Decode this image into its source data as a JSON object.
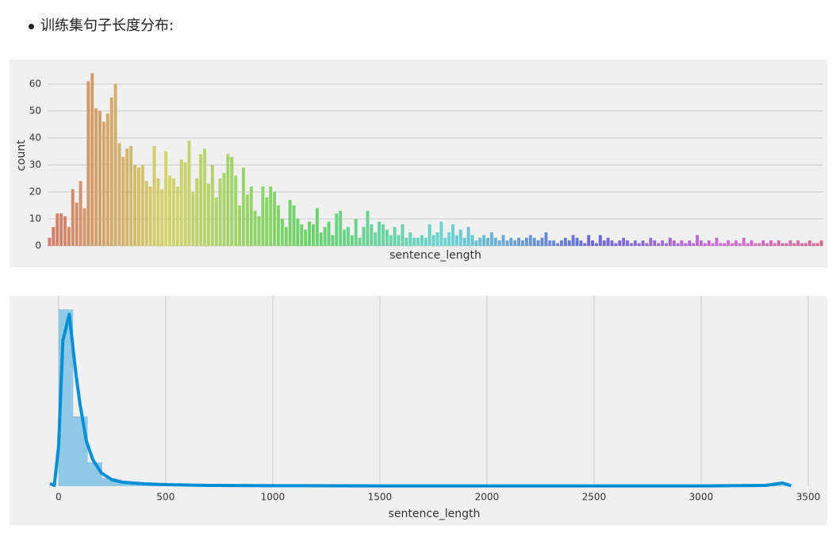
{
  "bullet": "训练集句子长度分布:",
  "chart_data": [
    {
      "type": "bar",
      "xlabel": "sentence_length",
      "ylabel": "count",
      "palette": "husl",
      "grid": "y",
      "ylim": [
        0,
        67
      ],
      "yticks": [
        0,
        10,
        20,
        30,
        40,
        50,
        60
      ],
      "values": [
        3,
        7,
        12,
        12,
        11,
        7,
        21,
        16,
        24,
        14,
        61,
        64,
        51,
        50,
        46,
        49,
        55,
        60,
        38,
        33,
        36,
        37,
        30,
        29,
        30,
        24,
        22,
        37,
        25,
        21,
        35,
        26,
        25,
        22,
        32,
        31,
        39,
        20,
        25,
        34,
        36,
        23,
        30,
        18,
        25,
        27,
        34,
        33,
        26,
        15,
        29,
        19,
        22,
        13,
        11,
        22,
        18,
        22,
        20,
        15,
        10,
        7,
        17,
        15,
        10,
        8,
        6,
        9,
        8,
        14,
        5,
        7,
        9,
        4,
        12,
        13,
        6,
        7,
        4,
        10,
        3,
        7,
        13,
        8,
        5,
        9,
        8,
        6,
        4,
        7,
        4,
        8,
        3,
        5,
        3,
        3,
        4,
        3,
        8,
        4,
        5,
        9,
        3,
        5,
        8,
        4,
        6,
        3,
        7,
        4,
        2,
        3,
        4,
        3,
        5,
        3,
        2,
        4,
        2,
        3,
        2,
        3,
        2,
        3,
        4,
        3,
        2,
        3,
        5,
        2,
        2,
        1,
        2,
        3,
        2,
        4,
        3,
        2,
        1,
        4,
        2,
        1,
        4,
        2,
        3,
        2,
        1,
        2,
        3,
        2,
        1,
        2,
        1,
        2,
        1,
        3,
        2,
        1,
        2,
        1,
        3,
        2,
        1,
        2,
        1,
        2,
        1,
        4,
        2,
        1,
        2,
        1,
        3,
        1,
        1,
        2,
        1,
        2,
        1,
        3,
        1,
        2,
        1,
        1,
        2,
        1,
        2,
        1,
        2,
        1,
        1,
        2,
        1,
        2,
        1,
        1,
        2,
        1,
        1,
        2
      ]
    },
    {
      "type": "histogram",
      "xlabel": "sentence_length",
      "color": "#008fd5",
      "grid": "x",
      "xlim": [
        -81,
        3589
      ],
      "xticks": [
        0,
        500,
        1000,
        1500,
        2000,
        2500,
        3000,
        3500
      ],
      "ylim": [
        0,
        0.0072
      ],
      "bins": [
        0,
        68,
        136,
        204,
        272,
        340,
        408,
        476,
        544,
        612,
        680,
        748,
        816,
        884,
        952,
        1020,
        1088,
        1156,
        1224,
        1292,
        1360,
        1428,
        1496,
        1564,
        1632,
        1700,
        1768,
        1836,
        1904,
        1972,
        2040,
        2108,
        2176,
        2244,
        2312,
        2380,
        2448,
        2516,
        2584,
        2652,
        2720,
        2788,
        2856,
        2924,
        2992,
        3060,
        3128,
        3196,
        3264,
        3332,
        3400
      ],
      "values": [
        0.00669,
        0.00264,
        0.0009,
        0.0003,
        0.00015,
        8e-05,
        5e-05,
        4e-05,
        3e-05,
        2e-05,
        1e-05,
        1e-05,
        1e-05,
        1e-05,
        1e-05,
        1e-05,
        1e-05,
        1e-05,
        1e-05,
        1e-05,
        1e-05,
        1e-05,
        1e-05,
        1e-05,
        1e-05,
        1e-05,
        1e-05,
        1e-05,
        1e-05,
        1e-05,
        1e-05,
        1e-05,
        1e-05,
        1e-05,
        1e-05,
        1e-05,
        1e-05,
        1e-05,
        1e-05,
        1e-05,
        1e-05,
        1e-05,
        1e-05,
        1e-05,
        1e-05,
        1e-05,
        1e-05,
        1e-05,
        2e-05,
        3e-05
      ],
      "line": {
        "x": [
          -40,
          -20,
          0,
          20,
          50,
          80,
          100,
          130,
          160,
          200,
          250,
          300,
          400,
          500,
          700,
          1000,
          1500,
          2000,
          2500,
          3000,
          3300,
          3380,
          3420
        ],
        "values": [
          0.0001,
          3e-05,
          0.0015,
          0.0055,
          0.0065,
          0.0043,
          0.0031,
          0.0017,
          0.001,
          0.0005,
          0.00024,
          0.00015,
          9e-05,
          6e-05,
          3e-05,
          2e-05,
          1e-05,
          1e-05,
          1e-05,
          1e-05,
          3e-05,
          0.00012,
          2e-05
        ]
      }
    }
  ]
}
